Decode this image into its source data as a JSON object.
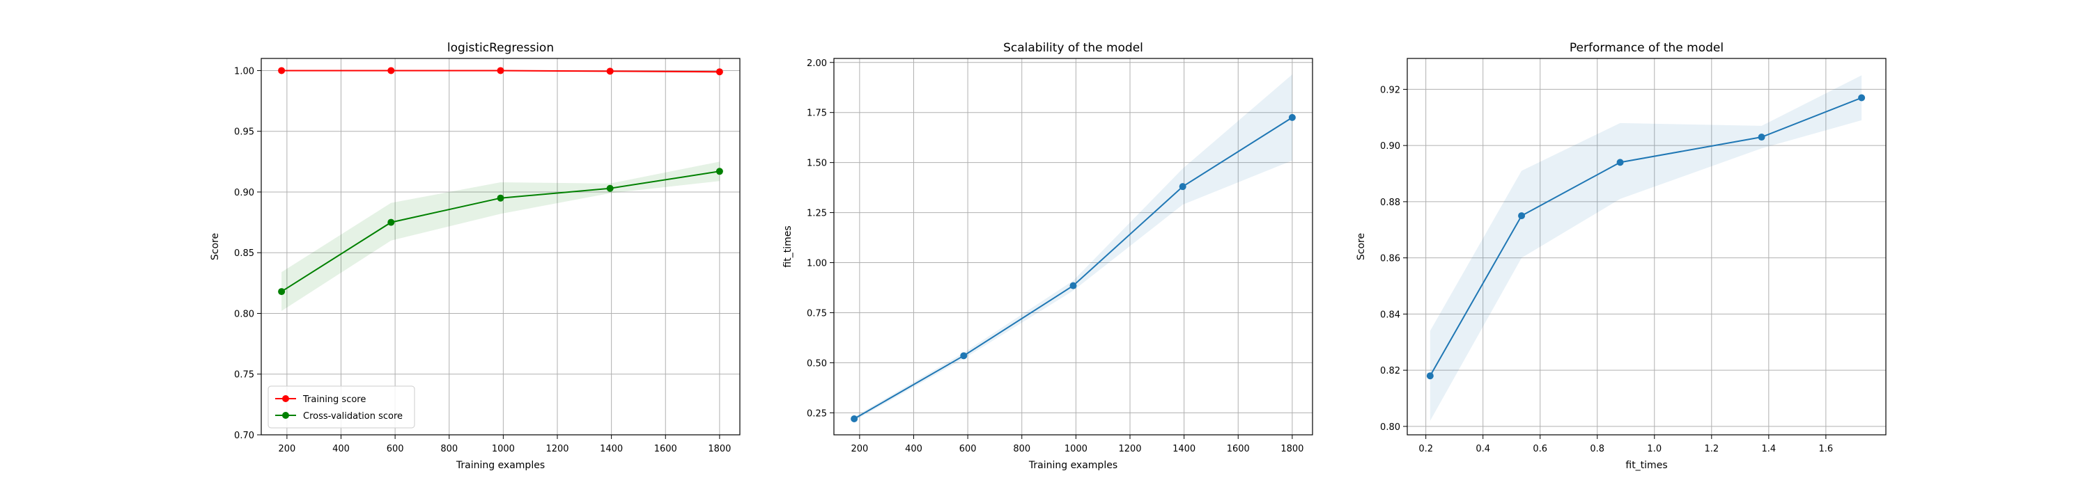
{
  "chart_data": [
    {
      "type": "line",
      "title": "logisticRegression",
      "xlabel": "Training examples",
      "ylabel": "Score",
      "xlim": [
        105,
        1875
      ],
      "ylim": [
        0.7,
        1.01
      ],
      "xticks": [
        200,
        400,
        600,
        800,
        1000,
        1200,
        1400,
        1600,
        1800
      ],
      "xtick_labels": [
        "200",
        "400",
        "600",
        "800",
        "1000",
        "1200",
        "1400",
        "1600",
        "1800"
      ],
      "yticks": [
        0.7,
        0.75,
        0.8,
        0.85,
        0.9,
        0.95,
        1.0
      ],
      "ytick_labels": [
        "0.70",
        "0.75",
        "0.80",
        "0.85",
        "0.90",
        "0.95",
        "1.00"
      ],
      "grid": true,
      "legend_position": "lower-left",
      "x": [
        180,
        585,
        990,
        1395,
        1800
      ],
      "series": [
        {
          "name": "Training score",
          "color": "#ff0000",
          "values": [
            1.0,
            1.0,
            1.0,
            0.9995,
            0.999
          ],
          "band_lower": [
            1.0,
            1.0,
            1.0,
            0.999,
            0.998
          ],
          "band_upper": [
            1.0,
            1.0,
            1.0,
            1.0,
            1.0
          ]
        },
        {
          "name": "Cross-validation score",
          "color": "#008000",
          "values": [
            0.818,
            0.875,
            0.895,
            0.903,
            0.917
          ],
          "band_lower": [
            0.802,
            0.86,
            0.882,
            0.899,
            0.909
          ],
          "band_upper": [
            0.834,
            0.891,
            0.908,
            0.907,
            0.925
          ]
        }
      ]
    },
    {
      "type": "line",
      "title": "Scalability of the model",
      "xlabel": "Training examples",
      "ylabel": "fit_times",
      "xlim": [
        105,
        1875
      ],
      "ylim": [
        0.14,
        2.02
      ],
      "xticks": [
        200,
        400,
        600,
        800,
        1000,
        1200,
        1400,
        1600,
        1800
      ],
      "xtick_labels": [
        "200",
        "400",
        "600",
        "800",
        "1000",
        "1200",
        "1400",
        "1600",
        "1800"
      ],
      "yticks": [
        0.25,
        0.5,
        0.75,
        1.0,
        1.25,
        1.5,
        1.75,
        2.0
      ],
      "ytick_labels": [
        "0.25",
        "0.50",
        "0.75",
        "1.00",
        "1.25",
        "1.50",
        "1.75",
        "2.00"
      ],
      "grid": true,
      "x": [
        180,
        585,
        990,
        1395,
        1800
      ],
      "series": [
        {
          "color": "#1f77b4",
          "band_color": "#1f77b4",
          "values": [
            0.22,
            0.535,
            0.885,
            1.38,
            1.725
          ],
          "band_lower": [
            0.21,
            0.52,
            0.86,
            1.29,
            1.51
          ],
          "band_upper": [
            0.23,
            0.55,
            0.91,
            1.47,
            1.94
          ]
        }
      ]
    },
    {
      "type": "line",
      "title": "Performance of the model",
      "xlabel": "fit_times",
      "ylabel": "Score",
      "xlim": [
        0.135,
        1.81
      ],
      "ylim": [
        0.797,
        0.931
      ],
      "xticks": [
        0.2,
        0.4,
        0.6,
        0.8,
        1.0,
        1.2,
        1.4,
        1.6
      ],
      "xtick_labels": [
        "0.2",
        "0.4",
        "0.6",
        "0.8",
        "1.0",
        "1.2",
        "1.4",
        "1.6"
      ],
      "yticks": [
        0.8,
        0.82,
        0.84,
        0.86,
        0.88,
        0.9,
        0.92
      ],
      "ytick_labels": [
        "0.80",
        "0.82",
        "0.84",
        "0.86",
        "0.88",
        "0.90",
        "0.92"
      ],
      "grid": true,
      "x": [
        0.215,
        0.535,
        0.88,
        1.375,
        1.725
      ],
      "series": [
        {
          "color": "#1f77b4",
          "band_color": "#1f77b4",
          "values": [
            0.818,
            0.875,
            0.894,
            0.903,
            0.917
          ],
          "band_lower": [
            0.802,
            0.86,
            0.881,
            0.899,
            0.909
          ],
          "band_upper": [
            0.834,
            0.891,
            0.908,
            0.907,
            0.925
          ]
        }
      ]
    }
  ]
}
